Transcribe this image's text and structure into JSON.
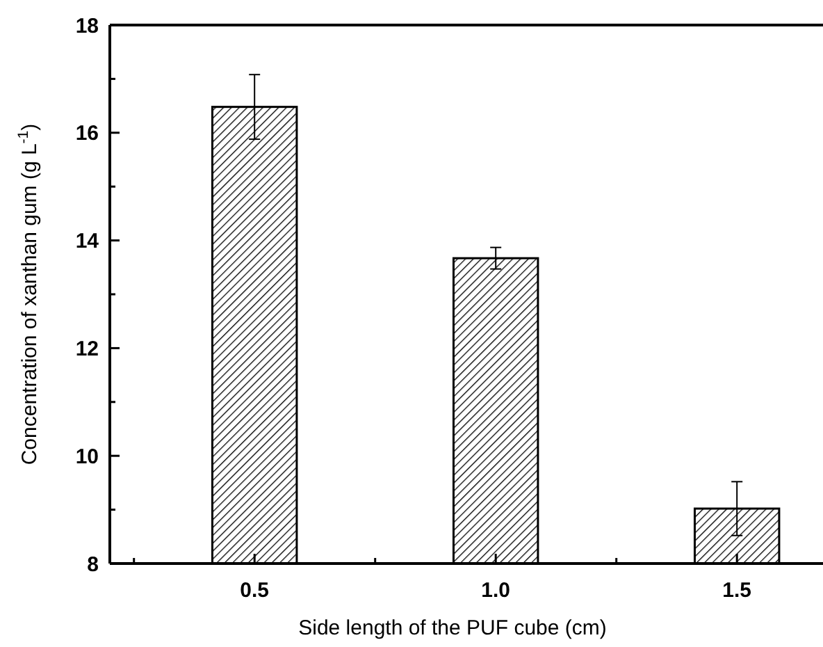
{
  "chart_data": {
    "type": "bar",
    "xlabel": "Side length of the PUF cube  (cm)",
    "ylabel": "Concentration of xanthan gum (g L$^{-1}$)",
    "categories": [
      "0.5",
      "1.0",
      "1.5"
    ],
    "values": [
      16.48,
      13.67,
      9.02
    ],
    "errors": [
      0.6,
      0.2,
      0.5
    ],
    "color": "#000000",
    "ylim": [
      8,
      18
    ],
    "yticks": [
      8,
      {
        "value": 9,
        "label": null
      },
      10,
      {
        "value": 11,
        "label": null
      },
      12,
      {
        "value": 13,
        "label": null
      },
      14,
      {
        "value": 15,
        "label": null
      },
      16,
      {
        "value": 17,
        "label": null
      },
      18
    ],
    "grid": false
  }
}
